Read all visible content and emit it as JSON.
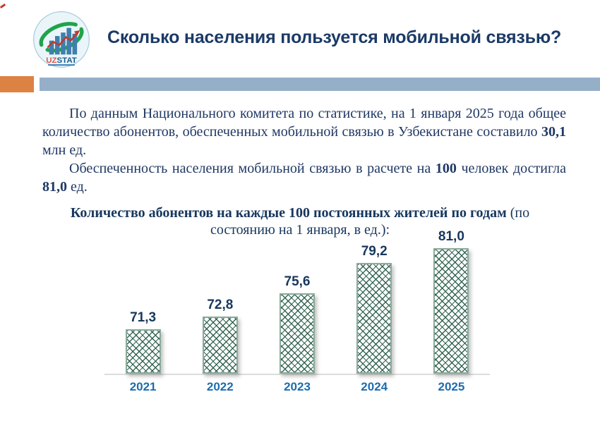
{
  "header": {
    "title": "Сколько населения пользуется мобильной связью?",
    "logo": {
      "uz": "UZ",
      "stat": "STAT"
    }
  },
  "intro": {
    "p1_pre": "По данным Национального комитета по статистике, на 1 января 2025 года общее количество абонентов, обеспеченных мобильной связью в Узбекистане составило ",
    "p1_bold": "30,1",
    "p1_post": " млн ед.",
    "p2_pre": "Обеспеченность населения мобильной связью в расчете на ",
    "p2_bold1": "100",
    "p2_mid": " человек достигла ",
    "p2_bold2": "81,0",
    "p2_post": " ед."
  },
  "chart_heading": {
    "bold": "Количество абонентов на каждые 100 постоянных жителей по годам",
    "normal": " (по состоянию на 1 января, в ед.):"
  },
  "chart_data": {
    "type": "bar",
    "title": "Количество абонентов на каждые 100 постоянных жителей по годам (по состоянию на 1 января, в ед.)",
    "categories": [
      "2021",
      "2022",
      "2023",
      "2024",
      "2025"
    ],
    "values": [
      71.3,
      72.8,
      75.6,
      79.2,
      81.0
    ],
    "value_labels": [
      "71,3",
      "72,8",
      "75,6",
      "79,2",
      "81,0"
    ],
    "xlabel": "",
    "ylabel": "",
    "ylim": [
      66,
      82
    ],
    "grid": false,
    "legend": false,
    "bar_fill_pattern": "green diagonal crosshatch on white",
    "colors": {
      "bar_pattern_line": "#2b5e4c",
      "bar_border": "#8aab9b",
      "value_label": "#17375d",
      "year_label": "#1e6cb0",
      "axis_line": "#dcdcdc"
    }
  },
  "theme_colors": {
    "title_navy": "#1b3a66",
    "body_navy": "#1f3864",
    "stripe_orange": "#dc8243",
    "stripe_blue": "#95afc9",
    "logo_green": "#1fa34b",
    "logo_bar_blue": "#3f7fae",
    "logo_trend_red": "#c0392b",
    "logo_uz_color": "#e0584a",
    "logo_stat_color": "#1d5c8d"
  }
}
